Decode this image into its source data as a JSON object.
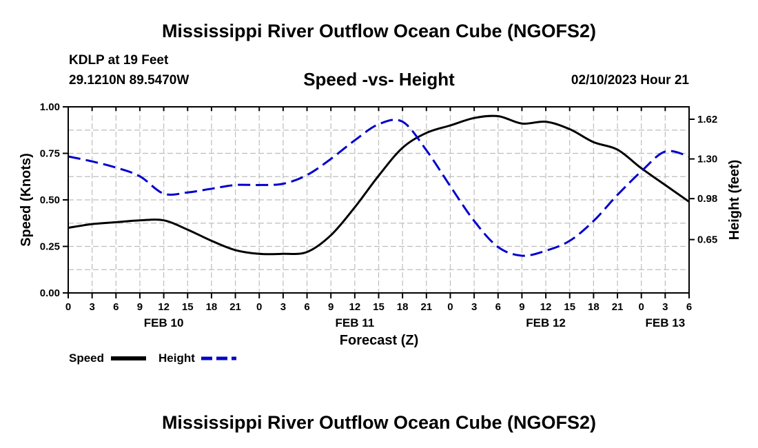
{
  "header": {
    "title": "Mississippi River Outflow Ocean Cube (NGOFS2)",
    "station": "KDLP at 19 Feet",
    "coords": "29.1210N  89.5470W",
    "subtitle": "Speed -vs- Height",
    "date": "02/10/2023 Hour 21"
  },
  "footer": {
    "title": "Mississippi River Outflow Ocean Cube (NGOFS2)"
  },
  "chart_data": {
    "type": "line",
    "title": "Speed -vs- Height",
    "xlabel": "Forecast (Z)",
    "ylabel": "Speed (Knots)",
    "y2label": "Height (feet)",
    "xlim": [
      0,
      78
    ],
    "ylim": [
      0,
      1.0
    ],
    "y2lim": [
      0.22,
      1.72
    ],
    "x_ticks": [
      0,
      3,
      6,
      9,
      12,
      15,
      18,
      21,
      24,
      27,
      30,
      33,
      36,
      39,
      42,
      45,
      48,
      51,
      54,
      57,
      60,
      63,
      66,
      69,
      72,
      75,
      78
    ],
    "x_tick_labels": [
      "0",
      "3",
      "6",
      "9",
      "12",
      "15",
      "18",
      "21",
      "0",
      "3",
      "6",
      "9",
      "12",
      "15",
      "18",
      "21",
      "0",
      "3",
      "6",
      "9",
      "12",
      "15",
      "18",
      "21",
      "0",
      "3",
      "6"
    ],
    "date_labels": [
      {
        "x": 12,
        "text": "FEB 10"
      },
      {
        "x": 36,
        "text": "FEB 11"
      },
      {
        "x": 60,
        "text": "FEB 12"
      },
      {
        "x": 75,
        "text": "FEB 13"
      }
    ],
    "y_ticks": [
      0,
      0.25,
      0.5,
      0.75,
      1.0
    ],
    "y_tick_labels": [
      "0.00",
      "0.25",
      "0.50",
      "0.75",
      "1.00"
    ],
    "y2_ticks": [
      0.65,
      0.98,
      1.3,
      1.62
    ],
    "y2_tick_labels": [
      "0.65",
      "0.98",
      "1.30",
      "1.62"
    ],
    "legend_position": "bottom-left",
    "series": [
      {
        "name": "Speed",
        "axis": "left",
        "color": "#000000",
        "style": "solid",
        "x": [
          0,
          3,
          6,
          9,
          12,
          15,
          18,
          21,
          24,
          27,
          30,
          33,
          36,
          39,
          42,
          45,
          48,
          51,
          54,
          57,
          60,
          63,
          66,
          69,
          72,
          75,
          78
        ],
        "y": [
          0.35,
          0.37,
          0.38,
          0.39,
          0.39,
          0.34,
          0.28,
          0.23,
          0.21,
          0.21,
          0.22,
          0.31,
          0.46,
          0.63,
          0.78,
          0.86,
          0.9,
          0.94,
          0.95,
          0.91,
          0.92,
          0.88,
          0.81,
          0.77,
          0.67,
          0.58,
          0.49
        ]
      },
      {
        "name": "Height",
        "axis": "right",
        "color": "#0000cc",
        "style": "dashed",
        "x": [
          0,
          3,
          6,
          9,
          12,
          15,
          18,
          21,
          24,
          27,
          30,
          33,
          36,
          39,
          42,
          45,
          48,
          51,
          54,
          57,
          60,
          63,
          66,
          69,
          72,
          75,
          78
        ],
        "y": [
          1.32,
          1.28,
          1.23,
          1.16,
          1.02,
          1.03,
          1.06,
          1.09,
          1.09,
          1.1,
          1.17,
          1.3,
          1.45,
          1.58,
          1.6,
          1.37,
          1.08,
          0.8,
          0.59,
          0.52,
          0.56,
          0.64,
          0.8,
          1.01,
          1.2,
          1.36,
          1.32
        ]
      }
    ]
  }
}
